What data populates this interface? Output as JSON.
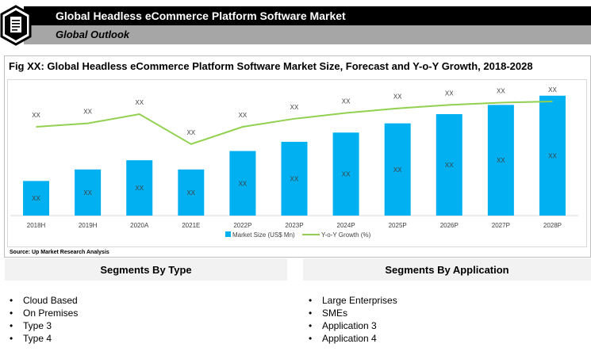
{
  "header": {
    "title": "Global Headless eCommerce Platform Software Market",
    "subtitle": "Global Outlook",
    "icon": "document-icon"
  },
  "figure": {
    "title": "Fig XX: Global Headless eCommerce Platform Software Market Size, Forecast and Y-o-Y Growth, 2018-2028",
    "source": "Source: Up Market Research Analysis"
  },
  "chart_data": {
    "type": "bar",
    "categories": [
      "2018H",
      "2019H",
      "2020A",
      "2021E",
      "2022P",
      "2023P",
      "2024P",
      "2025P",
      "2026P",
      "2027P",
      "2028P"
    ],
    "series": [
      {
        "name": "Market Size (US$ Mn)",
        "type": "bar",
        "color": "#00b0f0",
        "values": [
          30,
          40,
          48,
          40,
          56,
          64,
          72,
          80,
          88,
          96,
          104
        ],
        "data_labels": [
          "XX",
          "XX",
          "XX",
          "XX",
          "XX",
          "XX",
          "XX",
          "XX",
          "XX",
          "XX",
          "XX"
        ]
      },
      {
        "name": "Y-o-Y Growth (%)",
        "type": "line",
        "color": "#92d050",
        "values": [
          77,
          80,
          88,
          62,
          77,
          84,
          89,
          93,
          96,
          98,
          99
        ],
        "data_labels": [
          "XX",
          "XX",
          "XX",
          "XX",
          "XX",
          "XX",
          "XX",
          "XX",
          "XX",
          "XX",
          "XX"
        ]
      }
    ],
    "ylim": [
      0,
      110
    ],
    "grid": false,
    "legend": "bottom-center"
  },
  "segments": {
    "type": {
      "heading": "Segments By Type",
      "items": [
        "Cloud Based",
        "On Premises",
        "Type 3",
        "Type 4"
      ]
    },
    "application": {
      "heading": "Segments By Application",
      "items": [
        "Large Enterprises",
        "SMEs",
        "Application 3",
        "Application 4"
      ]
    },
    "bullet": "•"
  }
}
